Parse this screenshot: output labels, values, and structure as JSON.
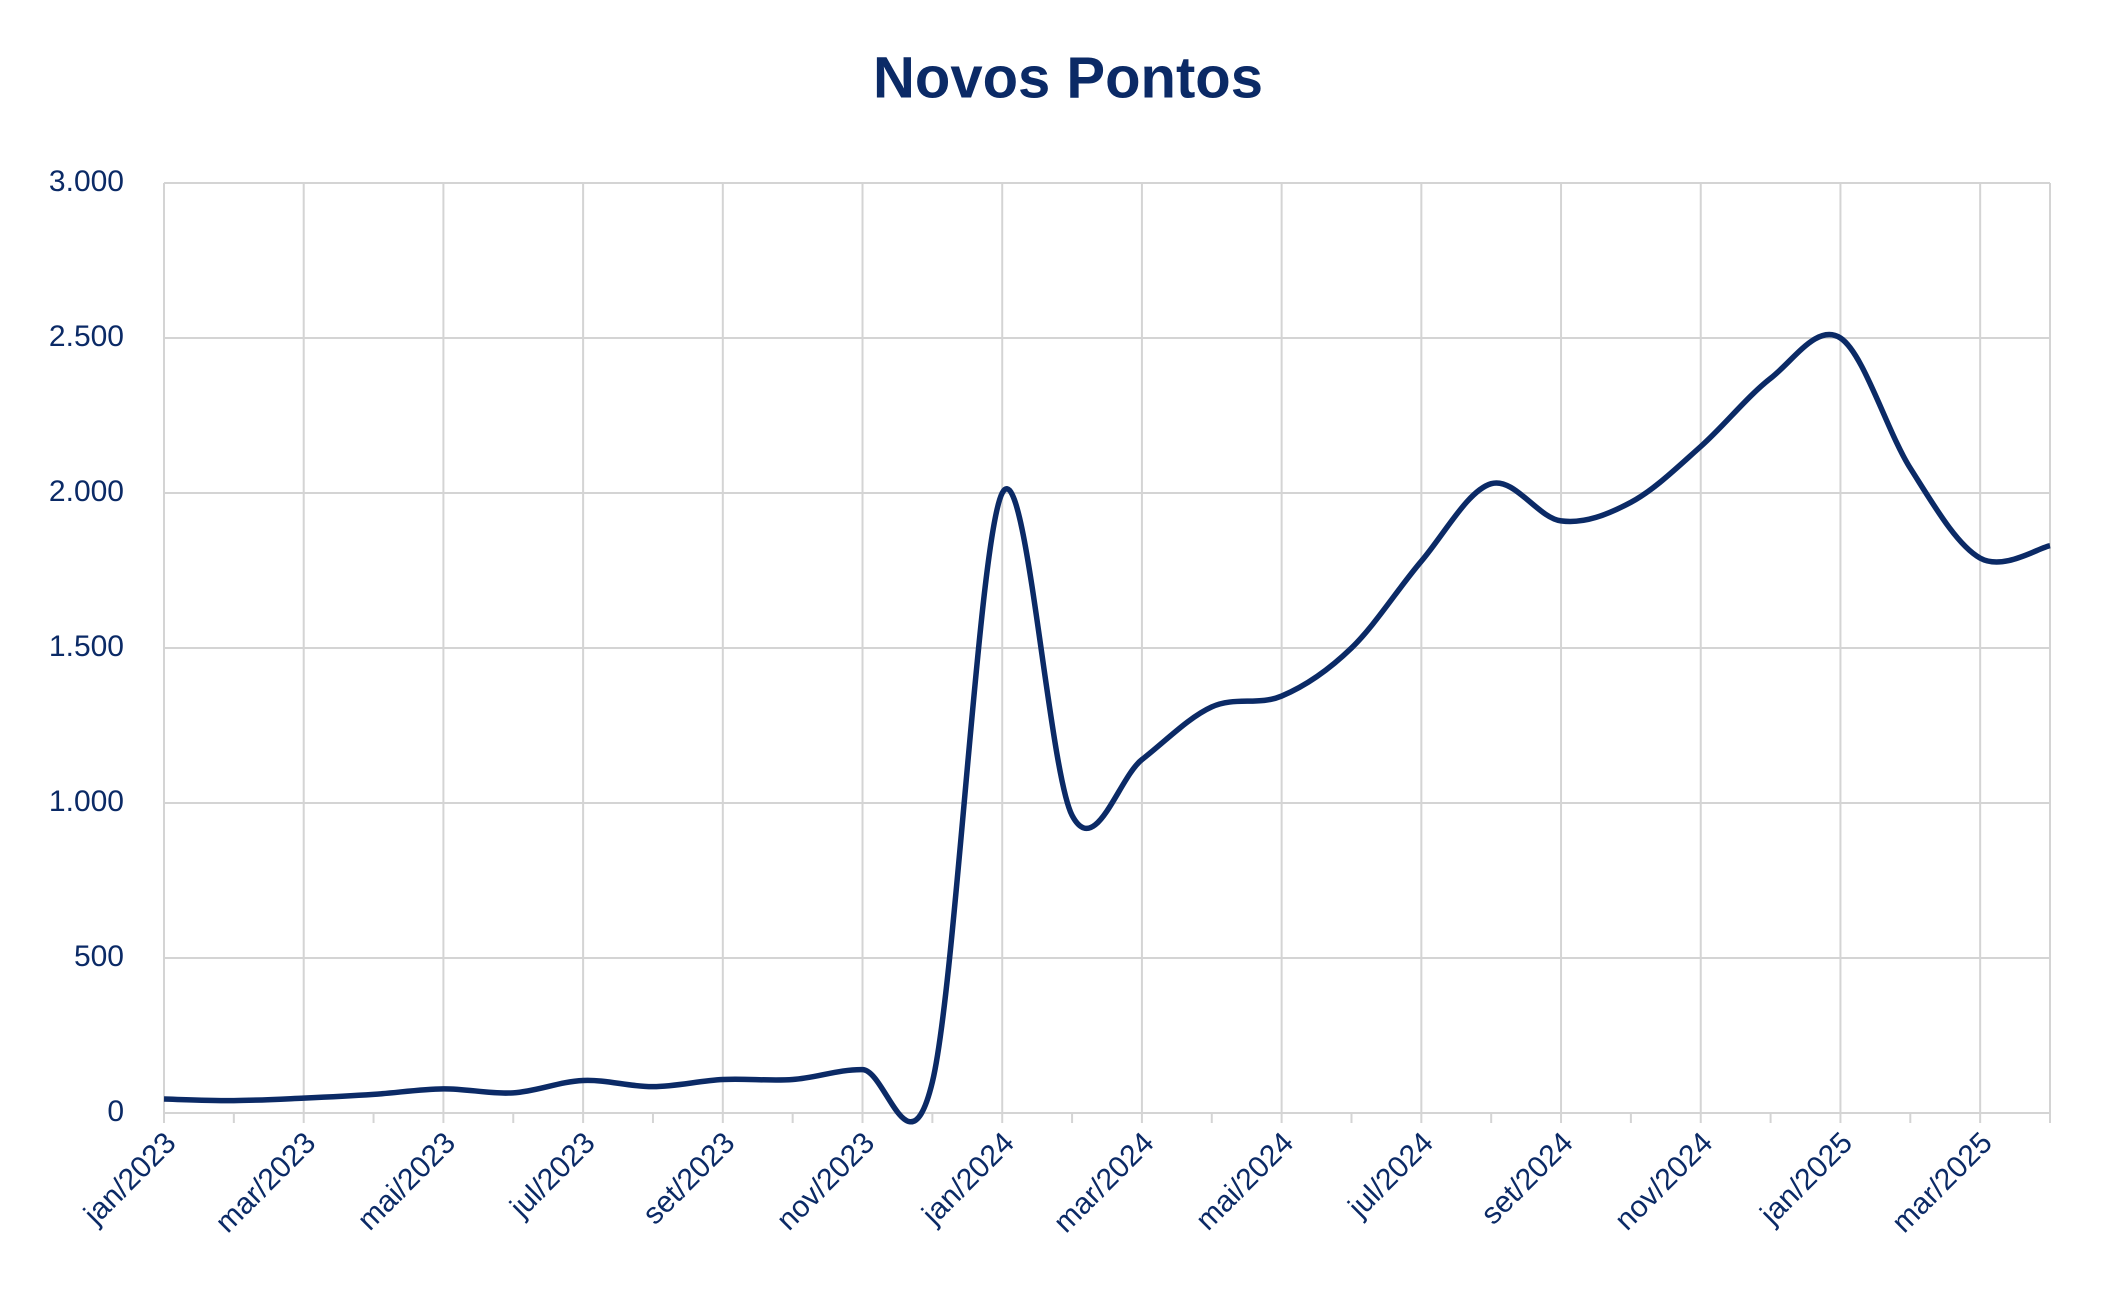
{
  "chart_data": {
    "type": "line",
    "title": "Novos Pontos",
    "categories": [
      "jan/2023",
      null,
      "mar/2023",
      null,
      "mai/2023",
      null,
      "jul/2023",
      null,
      "set/2023",
      null,
      "nov/2023",
      null,
      "jan/2024",
      null,
      "mar/2024",
      null,
      "mai/2024",
      null,
      "jul/2024",
      null,
      "set/2024",
      null,
      "nov/2024",
      null,
      "jan/2025",
      null,
      "mar/2025",
      null
    ],
    "series": [
      {
        "name": "Novos Pontos",
        "color": "#0b2a66",
        "values": [
          45,
          40,
          48,
          60,
          78,
          65,
          105,
          85,
          108,
          108,
          140,
          100,
          2000,
          960,
          1140,
          1310,
          1345,
          1500,
          1780,
          2030,
          1910,
          1970,
          2150,
          2370,
          2500,
          2080,
          1790,
          1830
        ]
      }
    ],
    "ylim": [
      0,
      3000
    ],
    "yticks": [
      0,
      500,
      {
        "value": 1000,
        "label": "1.000"
      },
      {
        "value": 1500,
        "label": "1.500"
      },
      {
        "value": 2000,
        "label": "2.000"
      },
      {
        "value": 2500,
        "label": "2.500"
      },
      {
        "value": 3000,
        "label": "3.000"
      }
    ],
    "grid": true
  }
}
